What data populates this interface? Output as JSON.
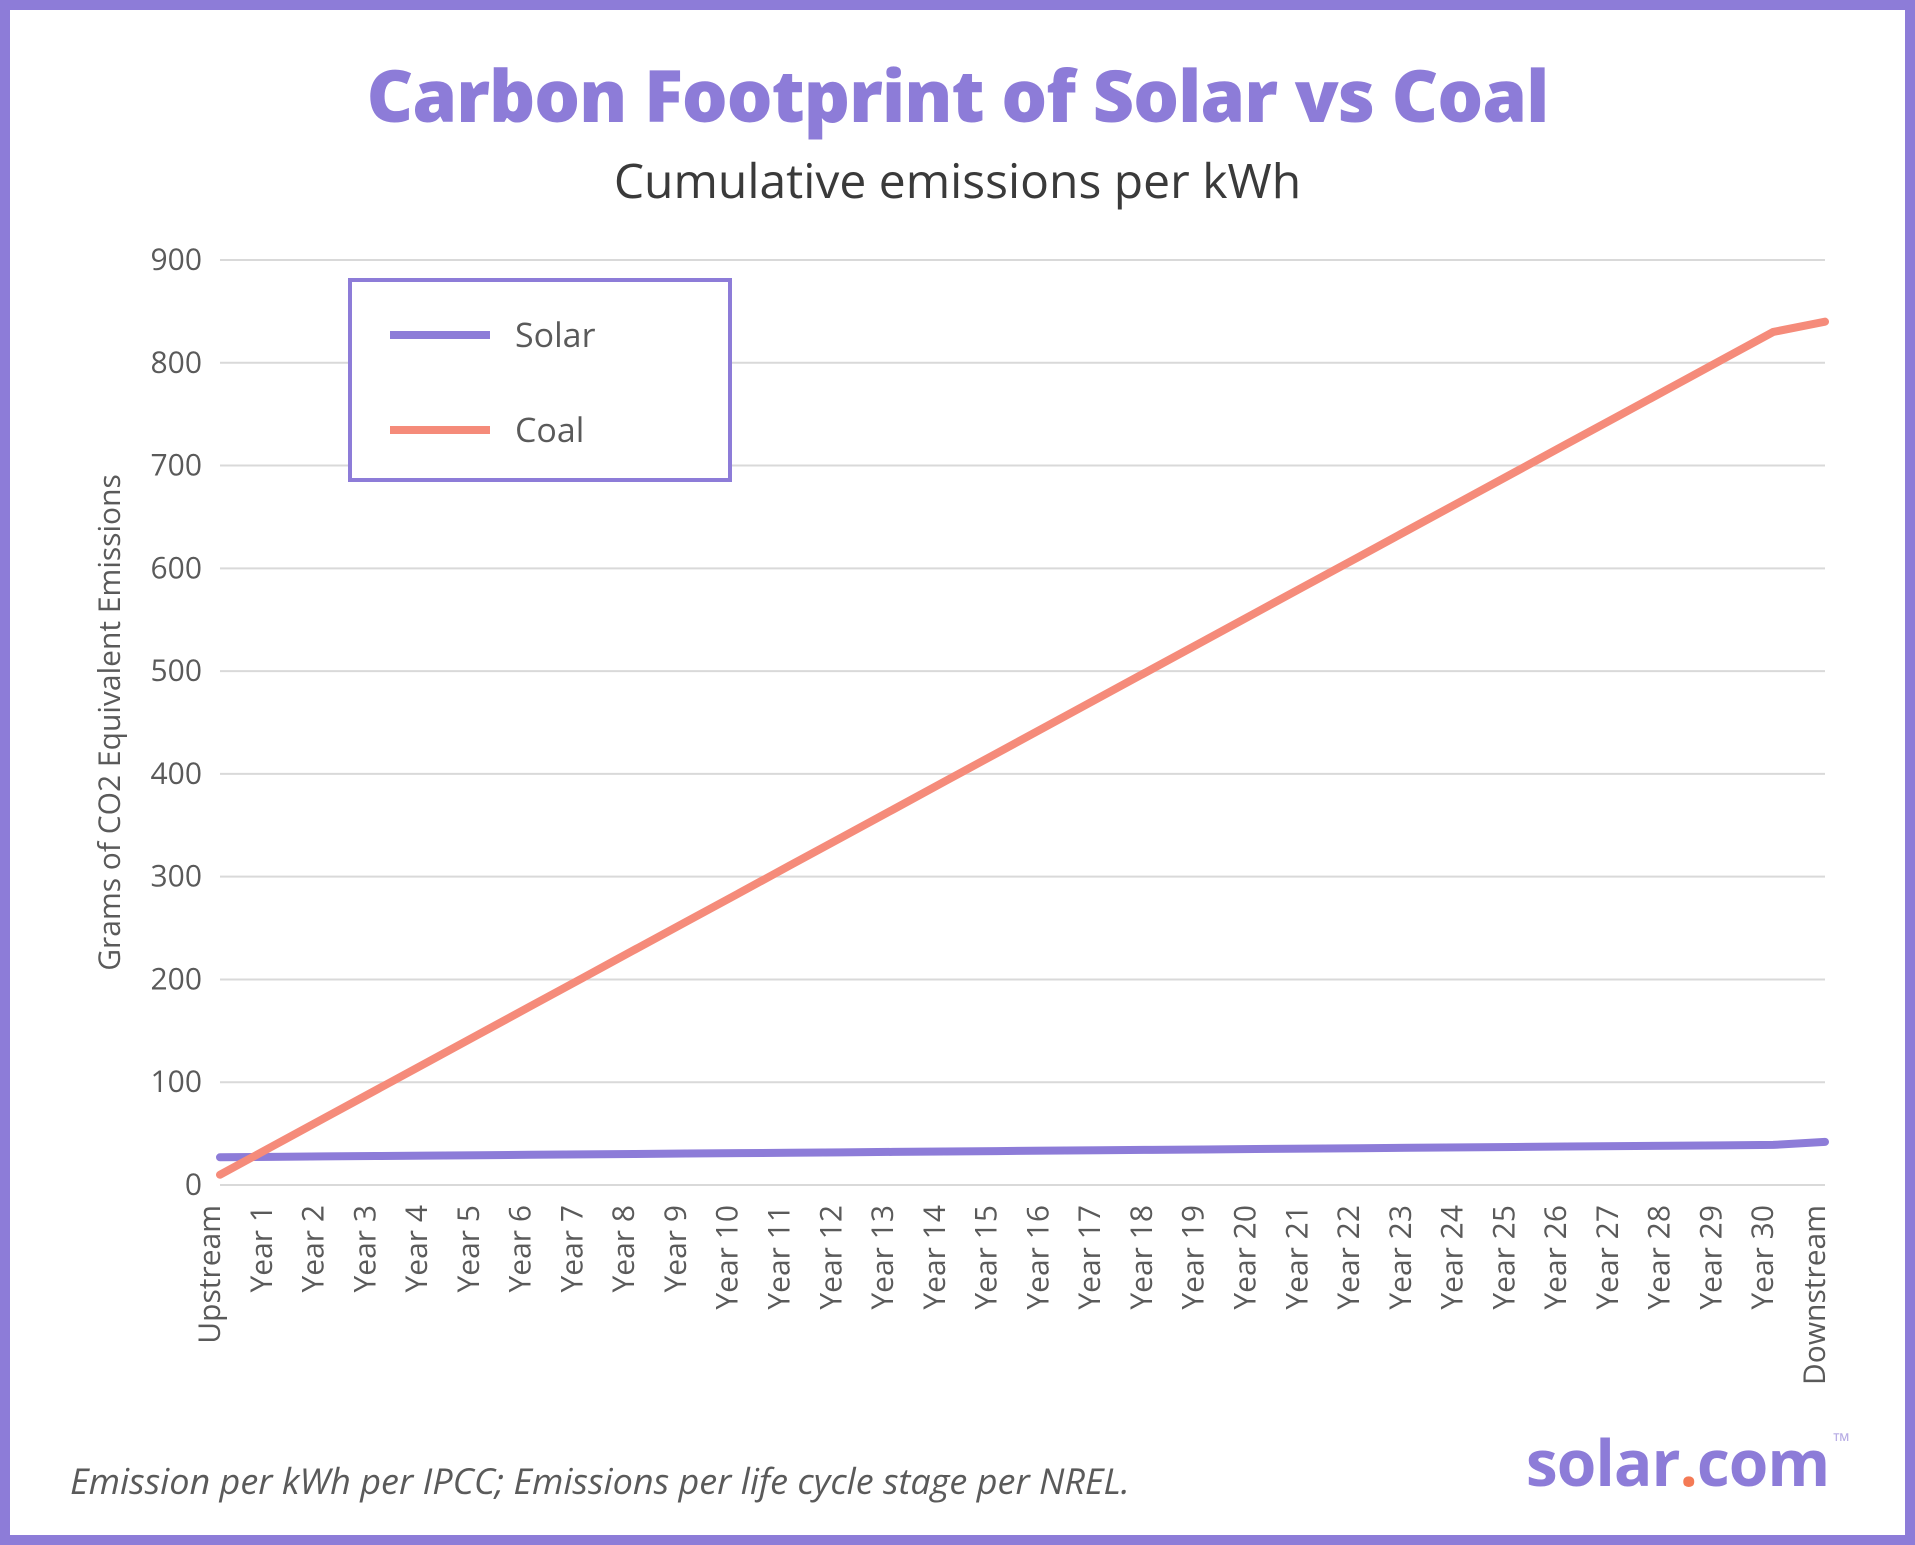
{
  "title": "Carbon Footprint of Solar vs Coal",
  "subtitle": "Cumulative emissions per kWh",
  "footnote": "Emission per kWh per IPCC; Emissions per life cycle stage per NREL.",
  "logo": {
    "part1": "solar",
    "dot": ".",
    "part2": "com",
    "tm": "™"
  },
  "chart": {
    "type": "line",
    "background_color": "#ffffff",
    "border_color": "#8d7cd8",
    "grid_color": "#d9d9d9",
    "title_color": "#8d7cd8",
    "subtitle_color": "#3a3a3a",
    "axis_text_color": "#5a5a5a",
    "title_fontsize": 72,
    "subtitle_fontsize": 48,
    "axis_label_fontsize": 30,
    "tick_fontsize": 30,
    "legend_fontsize": 34,
    "line_width": 8,
    "y_axis": {
      "label": "Grams of CO2 Equivalent Emissions",
      "min": 0,
      "max": 900,
      "tick_step": 100,
      "ticks": [
        0,
        100,
        200,
        300,
        400,
        500,
        600,
        700,
        800,
        900
      ]
    },
    "x_axis": {
      "categories": [
        "Upstream",
        "Year 1",
        "Year 2",
        "Year 3",
        "Year 4",
        "Year 5",
        "Year 6",
        "Year 7",
        "Year 8",
        "Year 9",
        "Year 10",
        "Year 11",
        "Year 12",
        "Year 13",
        "Year 14",
        "Year 15",
        "Year 16",
        "Year 17",
        "Year 18",
        "Year 19",
        "Year 20",
        "Year 21",
        "Year 22",
        "Year 23",
        "Year 24",
        "Year 25",
        "Year 26",
        "Year 27",
        "Year 28",
        "Year 29",
        "Year 30",
        "Downstream"
      ]
    },
    "series": [
      {
        "name": "Solar",
        "color": "#8d7cd8",
        "values": [
          27,
          27.4,
          27.8,
          28.2,
          28.6,
          29,
          29.4,
          29.8,
          30.2,
          30.6,
          31,
          31.4,
          31.8,
          32.2,
          32.6,
          33,
          33.4,
          33.8,
          34.2,
          34.6,
          35,
          35.4,
          35.8,
          36.2,
          36.6,
          37,
          37.4,
          37.8,
          38.2,
          38.6,
          39,
          42
        ]
      },
      {
        "name": "Coal",
        "color": "#f58b7a",
        "values": [
          10,
          37.3,
          64.7,
          92,
          119.3,
          146.7,
          174,
          201.3,
          228.7,
          256,
          283.3,
          310.7,
          338,
          365.3,
          392.7,
          420,
          447.3,
          474.7,
          502,
          529.3,
          556.7,
          584,
          611.3,
          638.7,
          666,
          693.3,
          720.7,
          748,
          775.3,
          802.7,
          830,
          840
        ]
      }
    ],
    "legend": {
      "border_color": "#8d7cd8",
      "background_color": "#ffffff",
      "position": "top-left-inside-plot"
    }
  }
}
